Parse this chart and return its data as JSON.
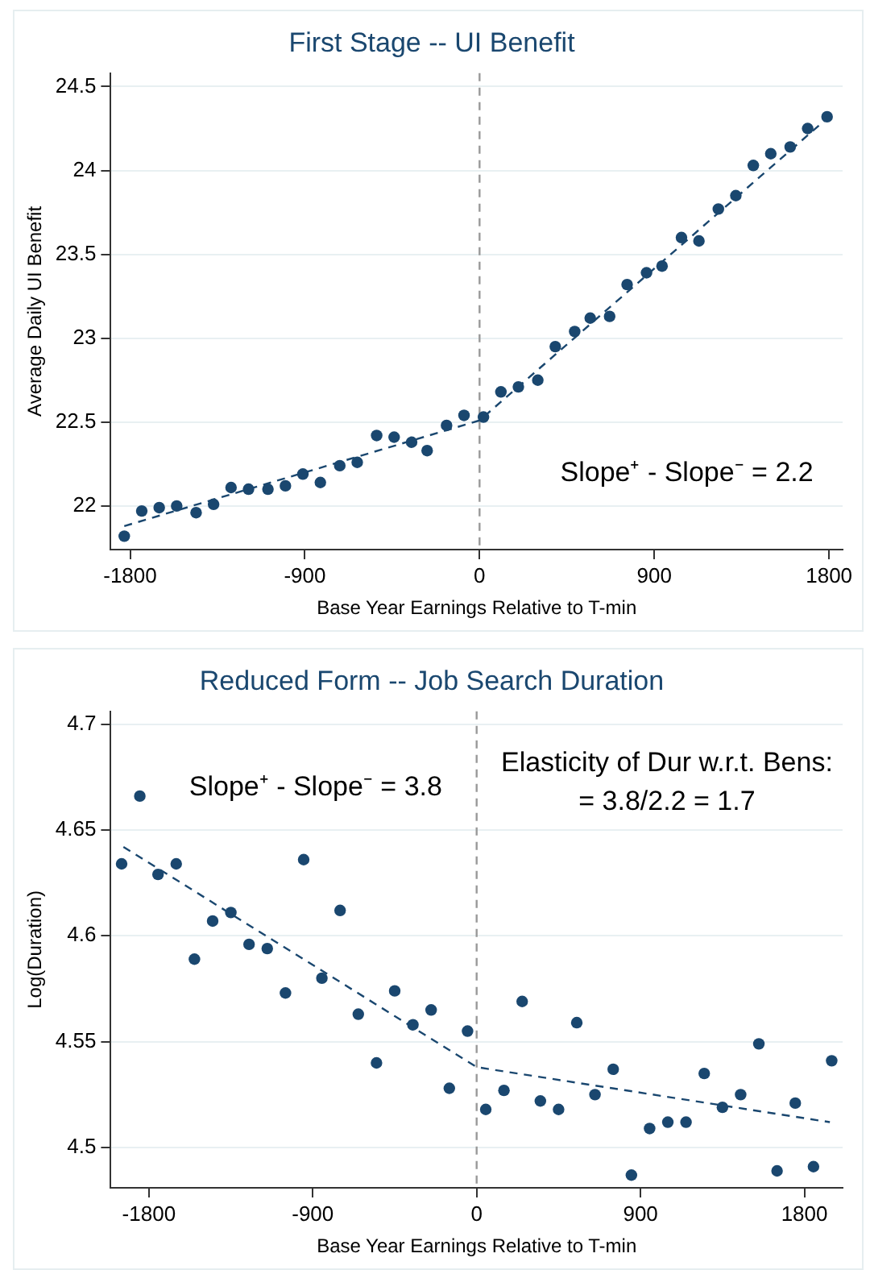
{
  "chart_data": [
    {
      "type": "scatter",
      "title": "First Stage -- UI Benefit",
      "xlabel": "Base Year Earnings Relative to T-min",
      "ylabel": "Average Daily UI Benefit",
      "xlim": [
        -1900,
        1870
      ],
      "xticks": [
        -1800,
        -900,
        0,
        900,
        1800
      ],
      "ylim": [
        21.74,
        24.58
      ],
      "yticks": [
        22,
        22.5,
        23,
        23.5,
        24,
        24.5
      ],
      "grid": "y",
      "ref_lines": [
        {
          "axis": "x",
          "value": 0,
          "color": "#999999",
          "line_style": "dashed"
        }
      ],
      "annotations": [
        "Slope⁺ - Slope⁻ = 2.2"
      ],
      "series": [
        {
          "type": "scatter",
          "marker": "circle",
          "color": "#1a476f",
          "x": [
            -1830,
            -1740,
            -1650,
            -1560,
            -1460,
            -1370,
            -1280,
            -1190,
            -1090,
            -1000,
            -910,
            -820,
            -720,
            -630,
            -530,
            -440,
            -350,
            -270,
            -170,
            -80,
            20,
            110,
            200,
            300,
            390,
            490,
            570,
            670,
            760,
            860,
            940,
            1040,
            1130,
            1230,
            1320,
            1410,
            1500,
            1600,
            1690,
            1790
          ],
          "values": [
            21.82,
            21.97,
            21.99,
            22.0,
            21.96,
            22.01,
            22.11,
            22.1,
            22.1,
            22.12,
            22.19,
            22.14,
            22.24,
            22.26,
            22.42,
            22.41,
            22.38,
            22.33,
            22.48,
            22.54,
            22.53,
            22.68,
            22.71,
            22.75,
            22.95,
            23.04,
            23.12,
            23.13,
            23.32,
            23.39,
            23.43,
            23.6,
            23.58,
            23.77,
            23.85,
            24.03,
            24.1,
            24.14,
            24.25,
            24.32
          ]
        },
        {
          "type": "line",
          "marker": "none",
          "line_style": "dashed",
          "color": "#1a476f",
          "x": [
            -1830,
            0,
            1790
          ],
          "values": [
            21.88,
            22.51,
            24.31
          ]
        }
      ]
    },
    {
      "type": "scatter",
      "title": "Reduced Form -- Job Search Duration",
      "xlabel": "Base Year Earnings Relative to T-min",
      "ylabel": "Log(Duration)",
      "xlim": [
        -2010,
        2010
      ],
      "xticks": [
        -1800,
        -900,
        0,
        900,
        1800
      ],
      "ylim": [
        4.481,
        4.706
      ],
      "yticks": [
        4.5,
        4.55,
        4.6,
        4.65,
        4.7
      ],
      "grid": "y",
      "ref_lines": [
        {
          "axis": "x",
          "value": 0,
          "color": "#999999",
          "line_style": "dashed"
        }
      ],
      "annotations": [
        "Slope⁺ - Slope⁻ = 3.8",
        "Elasticity of Dur w.r.t. Bens:",
        "= 3.8/2.2 = 1.7"
      ],
      "series": [
        {
          "type": "scatter",
          "marker": "circle",
          "color": "#1a476f",
          "x": [
            -1950,
            -1850,
            -1750,
            -1650,
            -1550,
            -1450,
            -1350,
            -1250,
            -1150,
            -1050,
            -950,
            -850,
            -750,
            -650,
            -550,
            -450,
            -350,
            -250,
            -150,
            -50,
            50,
            150,
            250,
            350,
            450,
            550,
            650,
            750,
            850,
            950,
            1050,
            1150,
            1250,
            1350,
            1450,
            1550,
            1650,
            1750,
            1850,
            1950
          ],
          "values": [
            4.634,
            4.666,
            4.629,
            4.634,
            4.589,
            4.607,
            4.611,
            4.596,
            4.594,
            4.573,
            4.636,
            4.58,
            4.612,
            4.563,
            4.54,
            4.574,
            4.558,
            4.565,
            4.528,
            4.555,
            4.518,
            4.527,
            4.569,
            4.522,
            4.518,
            4.559,
            4.525,
            4.537,
            4.487,
            4.509,
            4.512,
            4.512,
            4.535,
            4.519,
            4.525,
            4.549,
            4.489,
            4.521,
            4.491,
            4.541
          ]
        },
        {
          "type": "line",
          "marker": "none",
          "line_style": "dashed",
          "color": "#1a476f",
          "x": [
            -1940,
            0,
            1940
          ],
          "values": [
            4.642,
            4.538,
            4.512
          ]
        }
      ]
    }
  ]
}
